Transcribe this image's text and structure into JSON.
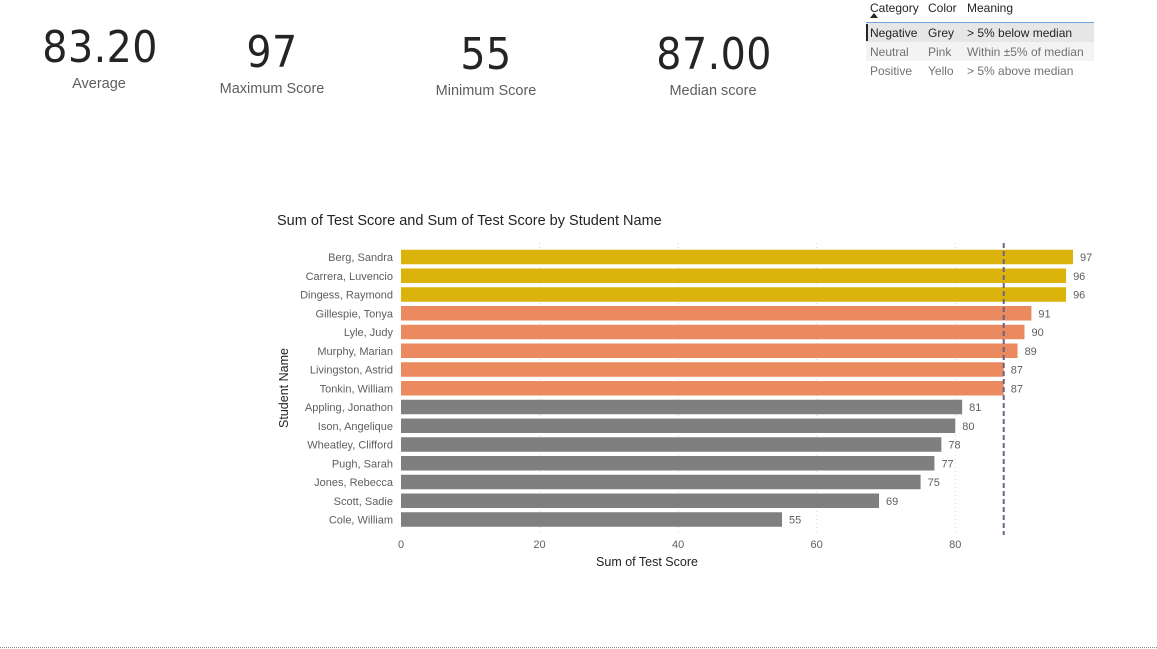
{
  "cards": {
    "average": {
      "value": "83.20",
      "label": "Average"
    },
    "maximum": {
      "value": "97",
      "label": "Maximum Score"
    },
    "minimum": {
      "value": "55",
      "label": "Minimum Score"
    },
    "median": {
      "value": "87.00",
      "label": "Median score"
    }
  },
  "legend_table": {
    "headers": [
      "Category",
      "Color",
      "Meaning"
    ],
    "rows": [
      [
        "Negative",
        "Grey",
        "> 5% below median"
      ],
      [
        "Neutral",
        "Pink",
        "Within ±5% of median"
      ],
      [
        "Positive",
        "Yello",
        "> 5% above median"
      ]
    ]
  },
  "chart_data": {
    "type": "bar",
    "orientation": "horizontal",
    "title": "Sum of Test Score and Sum of Test Score by Student Name",
    "xlabel": "Sum of Test Score",
    "ylabel": "Student Name",
    "categories": [
      "Berg, Sandra",
      "Carrera, Luvencio",
      "Dingess, Raymond",
      "Gillespie, Tonya",
      "Lyle, Judy",
      "Murphy, Marian",
      "Livingston, Astrid",
      "Tonkin, William",
      "Appling, Jonathon",
      "Ison, Angelique",
      "Wheatley, Clifford",
      "Pugh, Sarah",
      "Jones, Rebecca",
      "Scott, Sadie",
      "Cole, William"
    ],
    "values": [
      97,
      96,
      96,
      91,
      90,
      89,
      87,
      87,
      81,
      80,
      78,
      77,
      75,
      69,
      55
    ],
    "color_groups": [
      "Positive",
      "Positive",
      "Positive",
      "Neutral",
      "Neutral",
      "Neutral",
      "Neutral",
      "Neutral",
      "Negative",
      "Negative",
      "Negative",
      "Negative",
      "Negative",
      "Negative",
      "Negative"
    ],
    "group_colors": {
      "Positive": "#dbb30a",
      "Neutral": "#eb895f",
      "Negative": "#7f7f7f"
    },
    "xlim": [
      0,
      97
    ],
    "xticks": [
      0,
      20,
      40,
      60,
      80
    ],
    "median_line": 87,
    "median_line_color": "#6a6585",
    "grid": true
  }
}
